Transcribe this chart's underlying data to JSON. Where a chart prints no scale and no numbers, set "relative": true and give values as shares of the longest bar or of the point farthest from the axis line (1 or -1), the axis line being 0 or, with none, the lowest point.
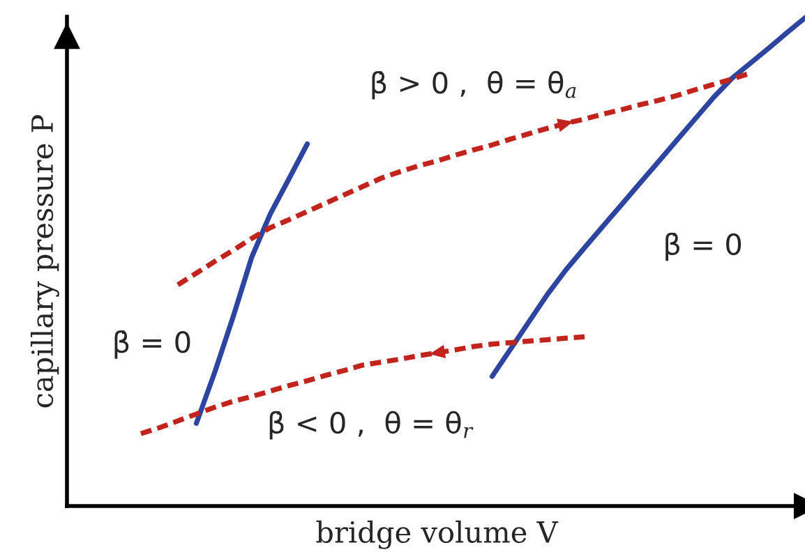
{
  "chart_data": {
    "type": "line",
    "relative": true,
    "xlabel": "bridge volume V",
    "ylabel": "capillary pressure P",
    "legend": false,
    "marker": "none",
    "categories": [
      null,
      null,
      null,
      null,
      null,
      null,
      null,
      null,
      null,
      null,
      null,
      null,
      null,
      null,
      null,
      null,
      null,
      null,
      null,
      null,
      null,
      null,
      null,
      null,
      null,
      null,
      null,
      null,
      null,
      null,
      null,
      null,
      null,
      null,
      null,
      null,
      null,
      null,
      null,
      null,
      null
    ],
    "series": [
      {
        "color": "#2e45a0",
        "line_style": "solid",
        "values": [
          null,
          null,
          null,
          null,
          null,
          null,
          null,
          0.169,
          0.274,
          0.388,
          0.509,
          0.597,
          0.668,
          0.74,
          null,
          null,
          null,
          null,
          null,
          null,
          null,
          null,
          null,
          null,
          null,
          null,
          null,
          null,
          null,
          null,
          null,
          null,
          null,
          null,
          null,
          null,
          null,
          null,
          null,
          null,
          null
        ]
      },
      {
        "color": "#2e45a0",
        "line_style": "solid",
        "values": [
          null,
          null,
          null,
          null,
          null,
          null,
          null,
          null,
          null,
          null,
          null,
          null,
          null,
          null,
          null,
          null,
          null,
          null,
          null,
          null,
          null,
          null,
          null,
          0.265,
          0.321,
          0.377,
          0.433,
          0.483,
          0.528,
          0.572,
          0.616,
          0.66,
          0.704,
          0.748,
          0.792,
          0.836,
          0.875,
          0.906,
          0.937,
          0.969,
          1.0
        ]
      },
      {
        "color": "#c0241c",
        "line_style": "dashed",
        "values": [
          null,
          null,
          null,
          null,
          null,
          null,
          0.452,
          0.476,
          0.5,
          0.523,
          0.547,
          0.569,
          0.585,
          0.602,
          0.619,
          0.636,
          0.653,
          0.67,
          0.683,
          0.695,
          0.705,
          0.717,
          0.728,
          0.738,
          0.75,
          0.761,
          0.772,
          0.782,
          0.791,
          0.801,
          0.81,
          0.82,
          0.829,
          0.839,
          0.851,
          0.862,
          0.873,
          0.885,
          null,
          null,
          null
        ]
      },
      {
        "color": "#c0241c",
        "line_style": "dashed",
        "values": [
          null,
          null,
          null,
          null,
          0.148,
          0.16,
          0.174,
          0.188,
          0.202,
          0.214,
          0.224,
          0.235,
          0.246,
          0.256,
          0.267,
          0.277,
          0.288,
          0.294,
          0.3,
          0.307,
          0.313,
          0.319,
          0.326,
          0.331,
          0.334,
          0.337,
          0.34,
          0.343,
          0.346,
          null,
          null,
          null,
          null,
          null,
          null,
          null,
          null,
          null,
          null,
          null,
          null
        ]
      }
    ],
    "annotations": [
      "β̇ > 0 ,  θ = θ$_{a}$",
      "β̇ = 0",
      "β̇ = 0",
      "β̇ < 0 ,  θ = θ$_{r}$"
    ]
  }
}
